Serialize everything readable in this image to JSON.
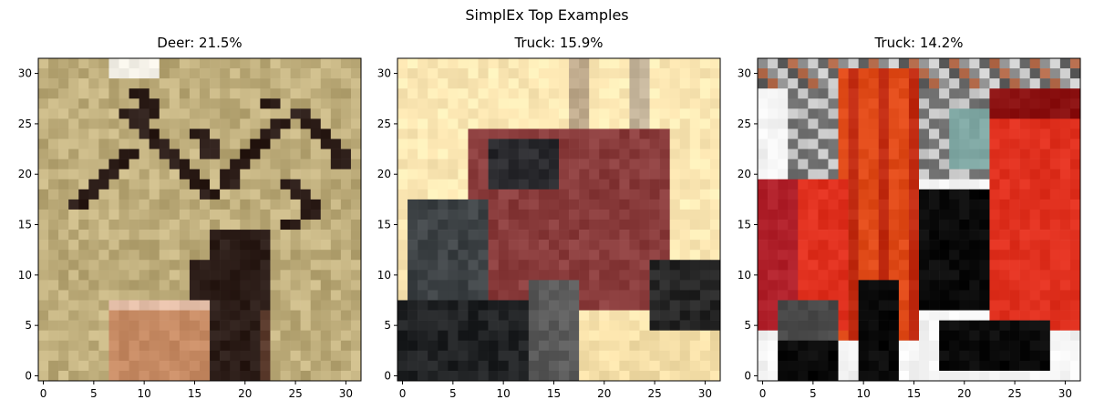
{
  "figure": {
    "title": "SimplEx Top Examples"
  },
  "chart_data": [
    {
      "type": "heatmap",
      "title": "Deer: 21.5%",
      "xlim": [
        -0.5,
        31.5
      ],
      "ylim": [
        31.5,
        -0.5
      ],
      "xticks": [
        0,
        5,
        10,
        15,
        20,
        25,
        30
      ],
      "yticks": [
        0,
        5,
        10,
        15,
        20,
        25,
        30
      ],
      "grid": false,
      "image_size": [
        32,
        32
      ],
      "palette": {
        "background": "#bfae7c",
        "dark": "#2b1c17",
        "accent": "#c68a63"
      }
    },
    {
      "type": "heatmap",
      "title": "Truck: 15.9%",
      "xlim": [
        -0.5,
        31.5
      ],
      "ylim": [
        31.5,
        -0.5
      ],
      "xticks": [
        0,
        5,
        10,
        15,
        20,
        25,
        30
      ],
      "yticks": [
        0,
        5,
        10,
        15,
        20,
        25,
        30
      ],
      "grid": false,
      "image_size": [
        32,
        32
      ],
      "palette": {
        "background": "#fde8b4",
        "dark": "#262626",
        "accent": "#8a3c3c"
      }
    },
    {
      "type": "heatmap",
      "title": "Truck: 14.2%",
      "xlim": [
        -0.5,
        31.5
      ],
      "ylim": [
        31.5,
        -0.5
      ],
      "xticks": [
        0,
        5,
        10,
        15,
        20,
        25,
        30
      ],
      "yticks": [
        0,
        5,
        10,
        15,
        20,
        25,
        30
      ],
      "grid": false,
      "image_size": [
        32,
        32
      ],
      "palette": {
        "background": "#f4f4f4",
        "dark": "#0a0a0a",
        "accent": "#e0301e"
      }
    }
  ]
}
